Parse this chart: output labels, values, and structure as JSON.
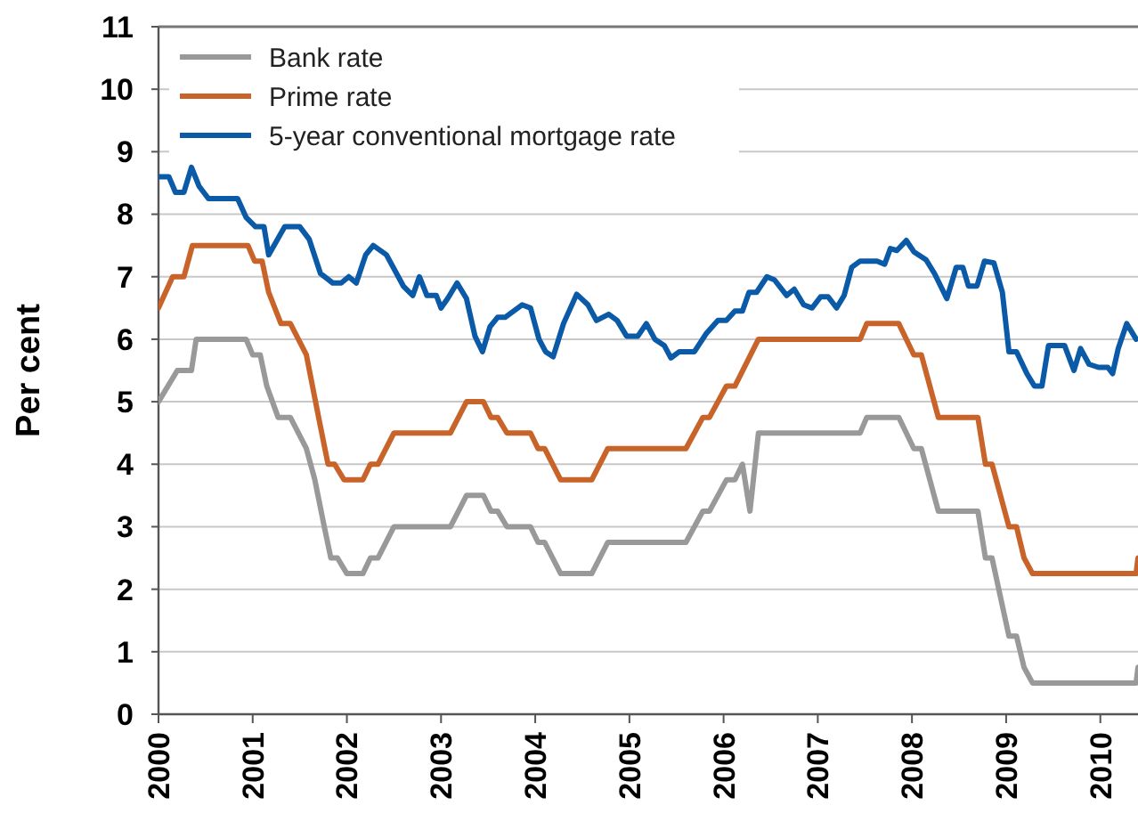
{
  "chart_data": {
    "type": "line",
    "ylabel": "Per cent",
    "xlim": [
      2000,
      2010.4
    ],
    "xticks": [
      2000,
      2001,
      2002,
      2003,
      2004,
      2005,
      2006,
      2007,
      2008,
      2009,
      2010
    ],
    "ylim": [
      0,
      11
    ],
    "yticks": [
      0,
      1,
      2,
      3,
      4,
      5,
      6,
      7,
      8,
      9,
      10,
      11
    ],
    "grid": "y",
    "legend": "top left",
    "line_style": "solid",
    "series": [
      {
        "name": "Bank rate",
        "color": "#999999",
        "x": [
          2000,
          2000.2,
          2000.35,
          2000.4,
          2000.93,
          2001,
          2001.08,
          2001.15,
          2001.27,
          2001.4,
          2001.57,
          2001.66,
          2001.76,
          2001.83,
          2001.9,
          2002,
          2002.17,
          2002.25,
          2002.33,
          2002.5,
          2003.1,
          2003.27,
          2003.45,
          2003.53,
          2003.6,
          2003.7,
          2003.95,
          2004.03,
          2004.1,
          2004.27,
          2004.6,
          2004.77,
          2005.6,
          2005.78,
          2005.85,
          2006.03,
          2006.12,
          2006.2,
          2006.28,
          2006.37,
          2007.45,
          2007.52,
          2007.86,
          2008.02,
          2008.1,
          2008.28,
          2008.7,
          2008.78,
          2008.85,
          2009.03,
          2009.11,
          2009.19,
          2009.28,
          2010.38,
          2010.4
        ],
        "values": [
          5,
          5.5,
          5.5,
          6,
          6,
          5.75,
          5.75,
          5.25,
          4.75,
          4.75,
          4.25,
          3.75,
          3,
          2.5,
          2.5,
          2.25,
          2.25,
          2.5,
          2.5,
          3,
          3,
          3.5,
          3.5,
          3.25,
          3.25,
          3,
          3,
          2.75,
          2.75,
          2.25,
          2.25,
          2.75,
          2.75,
          3.25,
          3.25,
          3.75,
          3.75,
          4,
          3.25,
          4.5,
          4.5,
          4.75,
          4.75,
          4.25,
          4.25,
          3.25,
          3.25,
          2.5,
          2.5,
          1.25,
          1.25,
          0.75,
          0.5,
          0.5,
          0.75
        ]
      },
      {
        "name": "Prime rate",
        "color": "#c8642a",
        "x": [
          2000,
          2000.15,
          2000.27,
          2000.36,
          2000.95,
          2001.02,
          2001.1,
          2001.17,
          2001.3,
          2001.4,
          2001.57,
          2001.7,
          2001.8,
          2001.87,
          2001.97,
          2002.17,
          2002.25,
          2002.33,
          2002.5,
          2003.1,
          2003.27,
          2003.45,
          2003.53,
          2003.6,
          2003.7,
          2003.95,
          2004.03,
          2004.1,
          2004.27,
          2004.6,
          2004.77,
          2005.6,
          2005.78,
          2005.85,
          2006.03,
          2006.12,
          2006.37,
          2007.45,
          2007.52,
          2007.86,
          2008.02,
          2008.1,
          2008.28,
          2008.7,
          2008.78,
          2008.85,
          2009.03,
          2009.11,
          2009.19,
          2009.28,
          2010.38,
          2010.4
        ],
        "values": [
          6.5,
          7,
          7,
          7.5,
          7.5,
          7.25,
          7.25,
          6.75,
          6.25,
          6.25,
          5.75,
          4.75,
          4,
          4,
          3.75,
          3.75,
          4,
          4,
          4.5,
          4.5,
          5,
          5,
          4.75,
          4.75,
          4.5,
          4.5,
          4.25,
          4.25,
          3.75,
          3.75,
          4.25,
          4.25,
          4.75,
          4.75,
          5.25,
          5.25,
          6,
          6,
          6.25,
          6.25,
          5.75,
          5.75,
          4.75,
          4.75,
          4,
          4,
          3,
          3,
          2.5,
          2.25,
          2.25,
          2.5
        ]
      },
      {
        "name": "5-year conventional mortgage rate",
        "color": "#0b5aa8",
        "x": [
          2000,
          2000.11,
          2000.18,
          2000.27,
          2000.35,
          2000.43,
          2000.53,
          2000.84,
          2000.93,
          2001.03,
          2001.12,
          2001.17,
          2001.34,
          2001.5,
          2001.6,
          2001.72,
          2001.85,
          2001.94,
          2002.02,
          2002.1,
          2002.2,
          2002.28,
          2002.42,
          2002.6,
          2002.7,
          2002.77,
          2002.85,
          2002.95,
          2003,
          2003.07,
          2003.17,
          2003.27,
          2003.36,
          2003.44,
          2003.52,
          2003.6,
          2003.68,
          2003.86,
          2003.95,
          2004.04,
          2004.11,
          2004.19,
          2004.3,
          2004.44,
          2004.56,
          2004.65,
          2004.78,
          2004.87,
          2004.97,
          2005.09,
          2005.18,
          2005.27,
          2005.37,
          2005.44,
          2005.53,
          2005.69,
          2005.82,
          2005.94,
          2006.03,
          2006.12,
          2006.2,
          2006.27,
          2006.35,
          2006.46,
          2006.54,
          2006.67,
          2006.75,
          2006.85,
          2006.94,
          2007.03,
          2007.11,
          2007.2,
          2007.28,
          2007.36,
          2007.45,
          2007.63,
          2007.71,
          2007.77,
          2007.84,
          2007.94,
          2008.02,
          2008.15,
          2008.24,
          2008.37,
          2008.47,
          2008.54,
          2008.6,
          2008.69,
          2008.77,
          2008.87,
          2008.96,
          2009.03,
          2009.11,
          2009.22,
          2009.3,
          2009.38,
          2009.45,
          2009.62,
          2009.72,
          2009.79,
          2009.88,
          2009.98,
          2010.08,
          2010.13,
          2010.19,
          2010.28,
          2010.38
        ],
        "values": [
          8.6,
          8.6,
          8.35,
          8.35,
          8.75,
          8.45,
          8.25,
          8.25,
          7.95,
          7.8,
          7.8,
          7.35,
          7.8,
          7.8,
          7.6,
          7.05,
          6.9,
          6.9,
          7,
          6.9,
          7.35,
          7.5,
          7.35,
          6.85,
          6.7,
          7,
          6.7,
          6.7,
          6.5,
          6.65,
          6.9,
          6.65,
          6.05,
          5.8,
          6.2,
          6.35,
          6.35,
          6.55,
          6.5,
          6,
          5.8,
          5.72,
          6.25,
          6.72,
          6.55,
          6.3,
          6.4,
          6.3,
          6.05,
          6.05,
          6.25,
          6,
          5.9,
          5.7,
          5.8,
          5.8,
          6.1,
          6.3,
          6.3,
          6.45,
          6.45,
          6.75,
          6.75,
          7,
          6.95,
          6.7,
          6.8,
          6.55,
          6.5,
          6.68,
          6.68,
          6.5,
          6.7,
          7.15,
          7.25,
          7.25,
          7.2,
          7.45,
          7.42,
          7.58,
          7.4,
          7.27,
          7.05,
          6.65,
          7.15,
          7.15,
          6.85,
          6.85,
          7.25,
          7.22,
          6.75,
          5.8,
          5.8,
          5.45,
          5.25,
          5.25,
          5.9,
          5.9,
          5.5,
          5.85,
          5.6,
          5.55,
          5.55,
          5.45,
          5.85,
          6.25,
          6
        ]
      }
    ]
  }
}
